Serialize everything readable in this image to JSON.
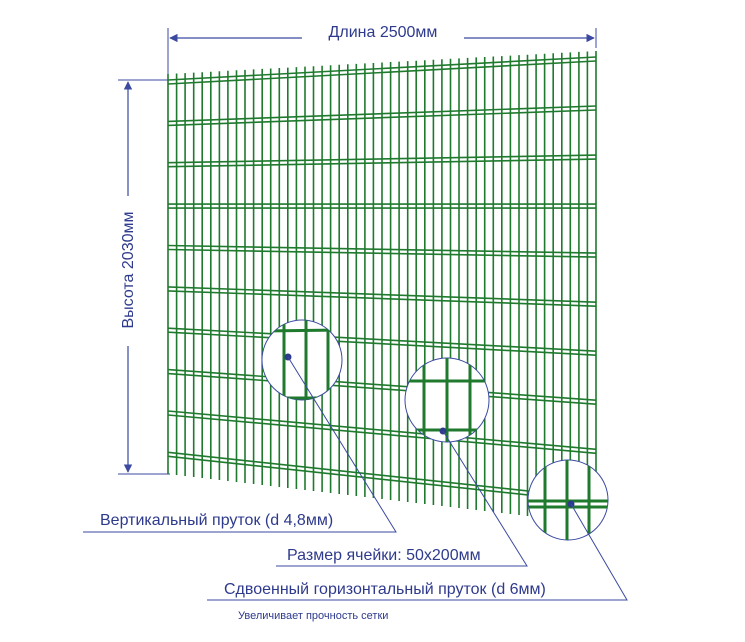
{
  "dimensions": {
    "length": "Длина 2500мм",
    "height": "Высота 2030мм"
  },
  "callouts": {
    "vertical_rod": "Вертикальный пруток (d 4,8мм)",
    "cell_size": "Размер ячейки: 50х200мм",
    "double_horizontal_rod": "Сдвоенный горизонтальный пруток (d 6мм)",
    "double_horizontal_note": "Увеличивает прочность сетки"
  },
  "colors": {
    "mesh": "#1f7a2e",
    "mesh_dark": "#145a20",
    "annotation": "#2e3a8c",
    "line": "#3b4aa0"
  }
}
